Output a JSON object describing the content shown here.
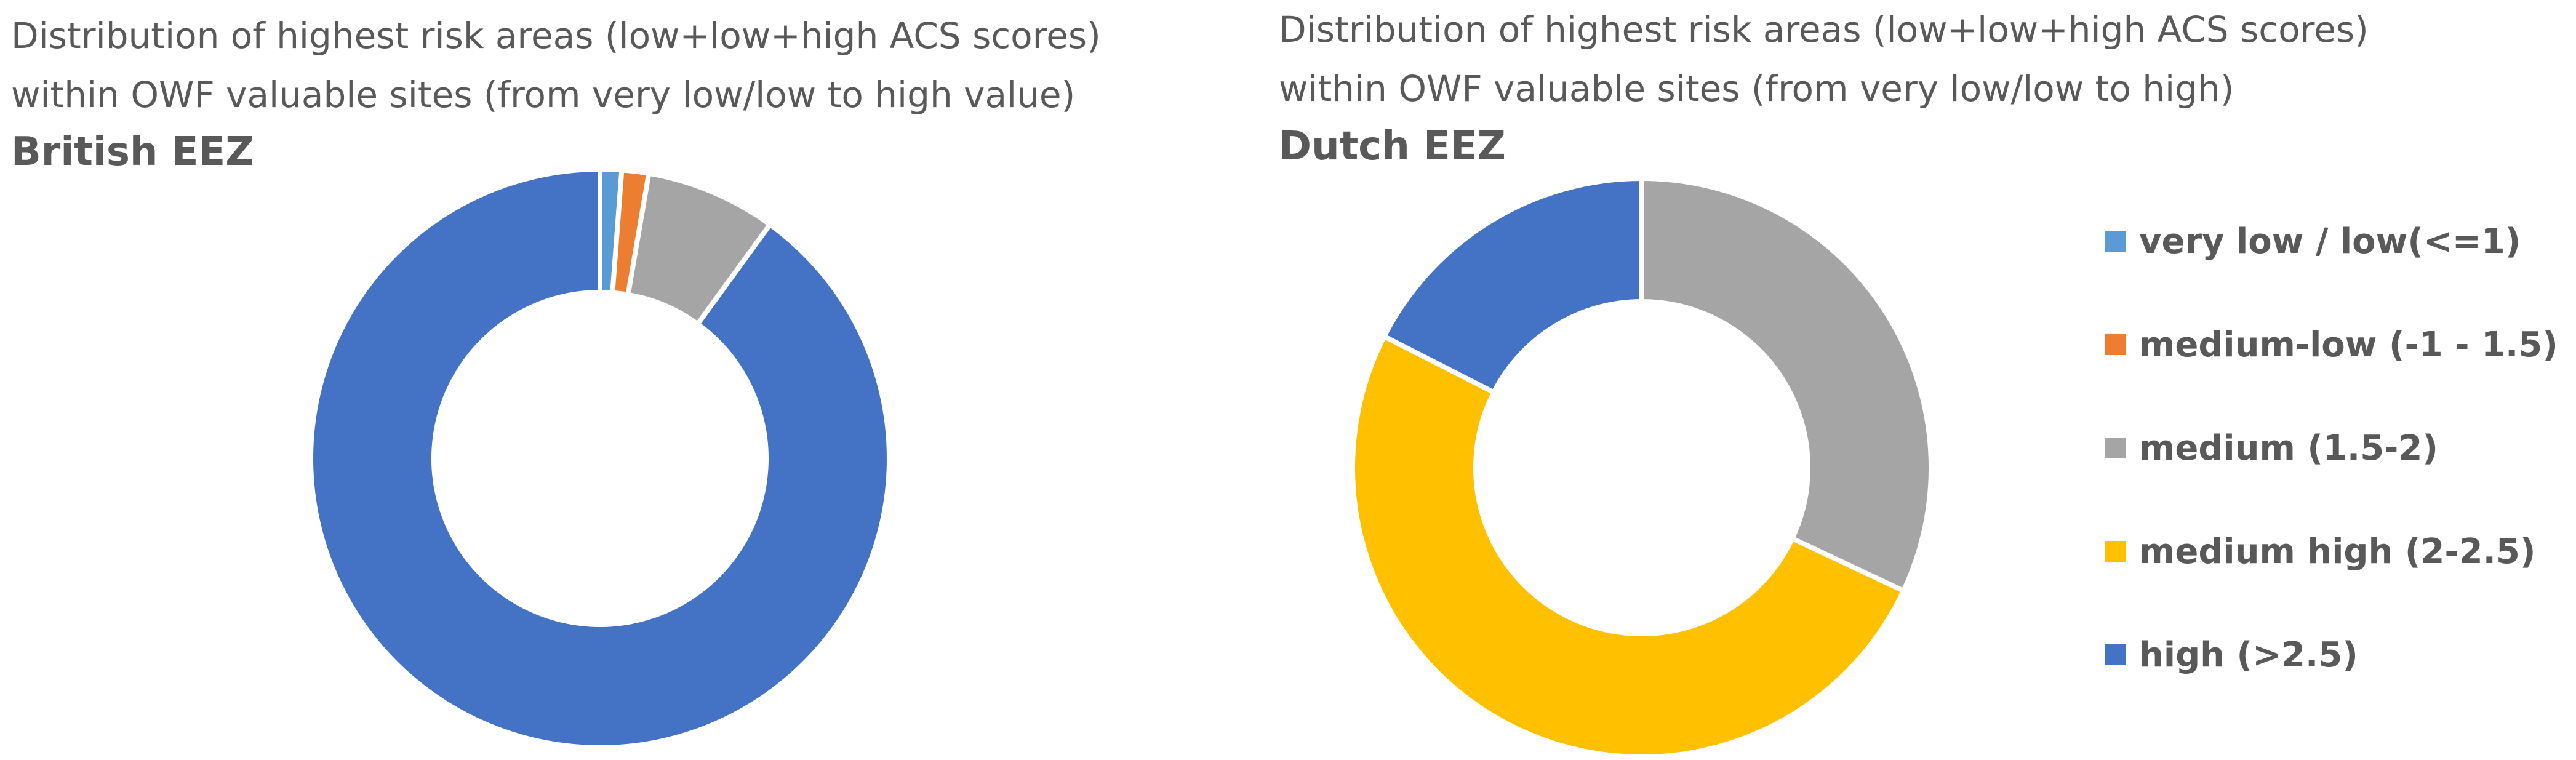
{
  "colors": {
    "very_low": "#5B9BD5",
    "medium_low": "#ED7D31",
    "medium": "#A5A5A5",
    "medium_high": "#FFC000",
    "high": "#4472C4",
    "text": "#595959",
    "separator": "#FFFFFF"
  },
  "chart_data": [
    {
      "type": "pie",
      "variant": "donut",
      "title_lines": [
        "Distribution of highest risk areas (low+low+high ACS scores)",
        "within OWF valuable sites (from very low/low to high value)"
      ],
      "subtitle": "British EEZ",
      "categories": [
        "very low / low(<=1)",
        "medium-low (-1 - 1.5)",
        "medium (1.5-2)",
        "medium high (2-2.5)",
        "high (>2.5)"
      ],
      "values_percent": [
        1.2,
        1.5,
        7.3,
        0.0,
        90.0
      ],
      "legend": "shared-right"
    },
    {
      "type": "pie",
      "variant": "donut",
      "title_lines": [
        "Distribution of highest risk areas (low+low+high ACS scores)",
        "within OWF valuable sites (from very low/low to high)"
      ],
      "subtitle": "Dutch EEZ",
      "categories": [
        "very low / low(<=1)",
        "medium-low (-1 - 1.5)",
        "medium (1.5-2)",
        "medium high (2-2.5)",
        "high (>2.5)"
      ],
      "values_percent": [
        0.0,
        0.0,
        32.0,
        50.5,
        17.5
      ],
      "legend": "right"
    }
  ],
  "legend": {
    "items": [
      {
        "label": "very low / low(<=1)",
        "color_key": "very_low"
      },
      {
        "label": "medium-low (-1 - 1.5)",
        "color_key": "medium_low"
      },
      {
        "label": "medium (1.5-2)",
        "color_key": "medium"
      },
      {
        "label": "medium high (2-2.5)",
        "color_key": "medium_high"
      },
      {
        "label": "high (>2.5)",
        "color_key": "high"
      }
    ]
  }
}
